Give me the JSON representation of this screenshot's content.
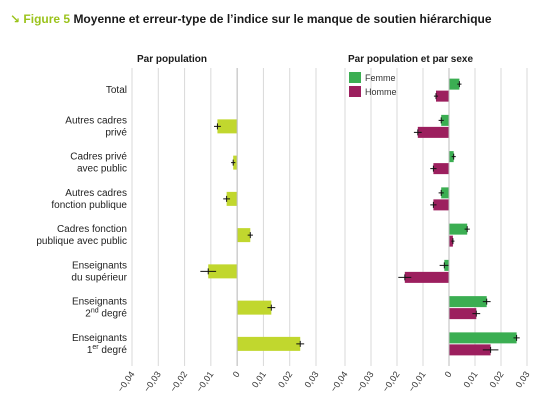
{
  "figure": {
    "arrow": "↘",
    "label": "Figure 5",
    "title": "Moyenne et erreur-type de l’indice sur le manque de soutien hiérarchique"
  },
  "colors": {
    "population": "#c1d72e",
    "femme": "#3bae52",
    "homme": "#9c1f5e",
    "grid": "#d9d9d9",
    "accent": "#9bc31c"
  },
  "chart_data": [
    {
      "type": "bar",
      "orientation": "horizontal",
      "title": "Par population",
      "categories": [
        [
          "Total"
        ],
        [
          "Autres cadres",
          "privé"
        ],
        [
          "Cadres privé",
          "avec public"
        ],
        [
          "Autres cadres",
          "fonction publique"
        ],
        [
          "Cadres fonction",
          "publique avec public"
        ],
        [
          "Enseignants",
          "du supérieur"
        ],
        [
          "Enseignants",
          "2nd degré"
        ],
        [
          "Enseignants",
          "1er degré"
        ]
      ],
      "series": [
        {
          "values": [
            0,
            -0.0075,
            -0.0015,
            -0.004,
            0.005,
            -0.011,
            0.013,
            0.024
          ],
          "errors": [
            0,
            0.0013,
            0.0008,
            0.0013,
            0.001,
            0.003,
            0.0015,
            0.0015
          ]
        }
      ],
      "xlim": [
        -0.04,
        0.03
      ],
      "xticks": [
        "−0,04",
        "−0,03",
        "−0,02",
        "−0,01",
        "0",
        "0,01",
        "0,02",
        "0,03"
      ],
      "grid": true
    },
    {
      "type": "bar",
      "orientation": "horizontal",
      "title": "Par population et par sexe",
      "categories": [
        [
          "Total"
        ],
        [
          "Autres cadres",
          "privé"
        ],
        [
          "Cadres privé",
          "avec public"
        ],
        [
          "Autres cadres",
          "fonction publique"
        ],
        [
          "Cadres fonction",
          "publique avec public"
        ],
        [
          "Enseignants",
          "du supérieur"
        ],
        [
          "Enseignants",
          "2nd degré"
        ],
        [
          "Enseignants",
          "1er degré"
        ]
      ],
      "series": [
        {
          "name": "Femme",
          "values": [
            0.004,
            -0.003,
            0.0018,
            -0.003,
            0.007,
            -0.0018,
            0.0145,
            0.026
          ],
          "errors": [
            0.0008,
            0.001,
            0.0008,
            0.001,
            0.001,
            0.0018,
            0.0015,
            0.0012
          ]
        },
        {
          "name": "Homme",
          "values": [
            -0.005,
            -0.012,
            -0.006,
            -0.006,
            0.0015,
            -0.017,
            0.0105,
            0.016
          ],
          "errors": [
            0.0008,
            0.0015,
            0.0012,
            0.0012,
            0.0006,
            0.0025,
            0.0015,
            0.003
          ]
        }
      ],
      "xlim": [
        -0.04,
        0.03
      ],
      "xticks": [
        "−0,04",
        "−0,03",
        "−0,02",
        "−0,01",
        "0",
        "0,01",
        "0,02",
        "0,03"
      ],
      "legend": "top-left",
      "grid": true
    }
  ]
}
